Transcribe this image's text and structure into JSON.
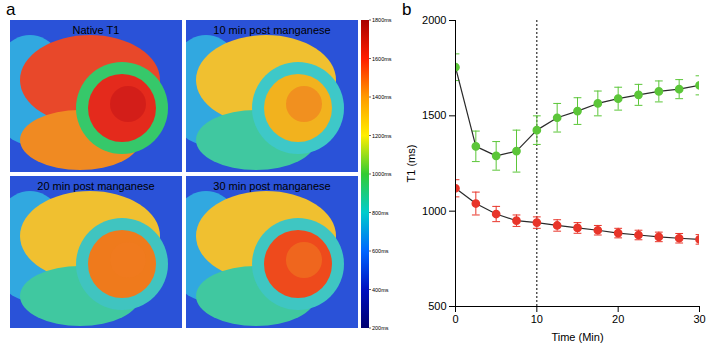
{
  "panel_labels": [
    "a",
    "b"
  ],
  "maps": {
    "titles": [
      "Native T1",
      "10 min post manganese",
      "20 min post manganese",
      "30 min post manganese"
    ],
    "colorbar": {
      "range": [
        200,
        1800
      ],
      "ticks": [
        {
          "value": 1800,
          "label": "1800ms"
        },
        {
          "value": 1600,
          "label": "1600ms"
        },
        {
          "value": 1400,
          "label": "1400ms"
        },
        {
          "value": 1200,
          "label": "1200ms"
        },
        {
          "value": 1000,
          "label": "1000ms"
        },
        {
          "value": 800,
          "label": "800ms"
        },
        {
          "value": 600,
          "label": "600ms"
        },
        {
          "value": 400,
          "label": "400ms"
        },
        {
          "value": 200,
          "label": "200ms"
        }
      ]
    }
  },
  "chart_data": {
    "type": "line",
    "x_label": "Time (Min)",
    "y_label": "T1 (ms)",
    "x": [
      0,
      2.5,
      5,
      7.5,
      10,
      12.5,
      15,
      17.5,
      20,
      22.5,
      25,
      27.5,
      30
    ],
    "xlim": [
      0,
      30
    ],
    "xticks": [
      0,
      10,
      20,
      30
    ],
    "ylim": [
      500,
      2000
    ],
    "yticks": [
      500,
      1000,
      1500,
      2000
    ],
    "grid": false,
    "marker": "circle",
    "series": [
      {
        "color": "#5cc639",
        "values": [
          1755,
          1340,
          1290,
          1315,
          1425,
          1490,
          1525,
          1565,
          1590,
          1610,
          1628,
          1640,
          1660
        ],
        "errors": [
          70,
          80,
          75,
          110,
          75,
          75,
          70,
          65,
          60,
          55,
          55,
          50,
          50
        ]
      },
      {
        "color": "#e8352a",
        "values": [
          1120,
          1040,
          985,
          950,
          940,
          925,
          912,
          900,
          885,
          875,
          865,
          858,
          852
        ],
        "errors": [
          45,
          60,
          40,
          30,
          30,
          30,
          28,
          25,
          25,
          25,
          25,
          25,
          25
        ]
      }
    ],
    "reference_lines": [
      {
        "x": 10,
        "line_style": "dotted"
      }
    ]
  }
}
